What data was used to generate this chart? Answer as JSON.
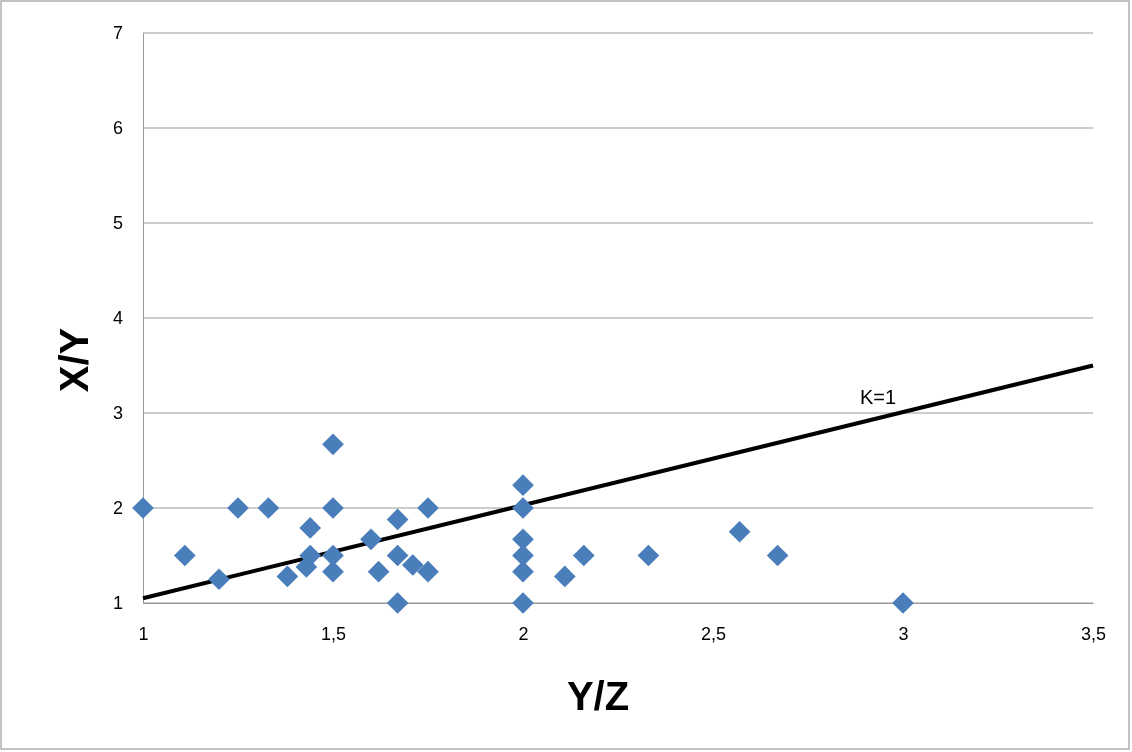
{
  "chart_data": {
    "type": "scatter",
    "xlabel": "Y/Z",
    "ylabel": "X/Y",
    "xlim": [
      1,
      3.5
    ],
    "ylim": [
      1,
      7
    ],
    "xticks": [
      1,
      {
        "value": 1.5,
        "label": "1,5"
      },
      2,
      {
        "value": 2.5,
        "label": "2,5"
      },
      3,
      {
        "value": 3.5,
        "label": "3,5"
      }
    ],
    "yticks": [
      1,
      2,
      3,
      4,
      5,
      6,
      7
    ],
    "grid": "y",
    "series": [
      {
        "marker": "diamond",
        "color": "#4a7ebb",
        "x": [
          1,
          1.11,
          1.2,
          1.25,
          1.33,
          1.38,
          1.43,
          1.44,
          1.44,
          1.5,
          1.5,
          1.5,
          1.5,
          1.6,
          1.62,
          1.67,
          1.67,
          1.67,
          1.71,
          1.75,
          1.75,
          2,
          2,
          2,
          2,
          2,
          2,
          2.11,
          2.16,
          2.33,
          2.57,
          2.67,
          3
        ],
        "values": [
          2,
          1.5,
          1.25,
          2,
          2,
          1.28,
          1.38,
          1.5,
          1.79,
          2.67,
          2,
          1.5,
          1.33,
          1.67,
          1.33,
          1.88,
          1.5,
          1,
          1.4,
          1.33,
          2,
          2.24,
          2,
          1.67,
          1.5,
          1.33,
          1,
          1.28,
          1.5,
          1.5,
          1.75,
          1.5,
          1
        ]
      },
      {
        "type": "line",
        "color": "#000000",
        "x": [
          1,
          3.5
        ],
        "values": [
          1.05,
          3.5
        ]
      }
    ],
    "annotations": [
      "K=1"
    ]
  }
}
